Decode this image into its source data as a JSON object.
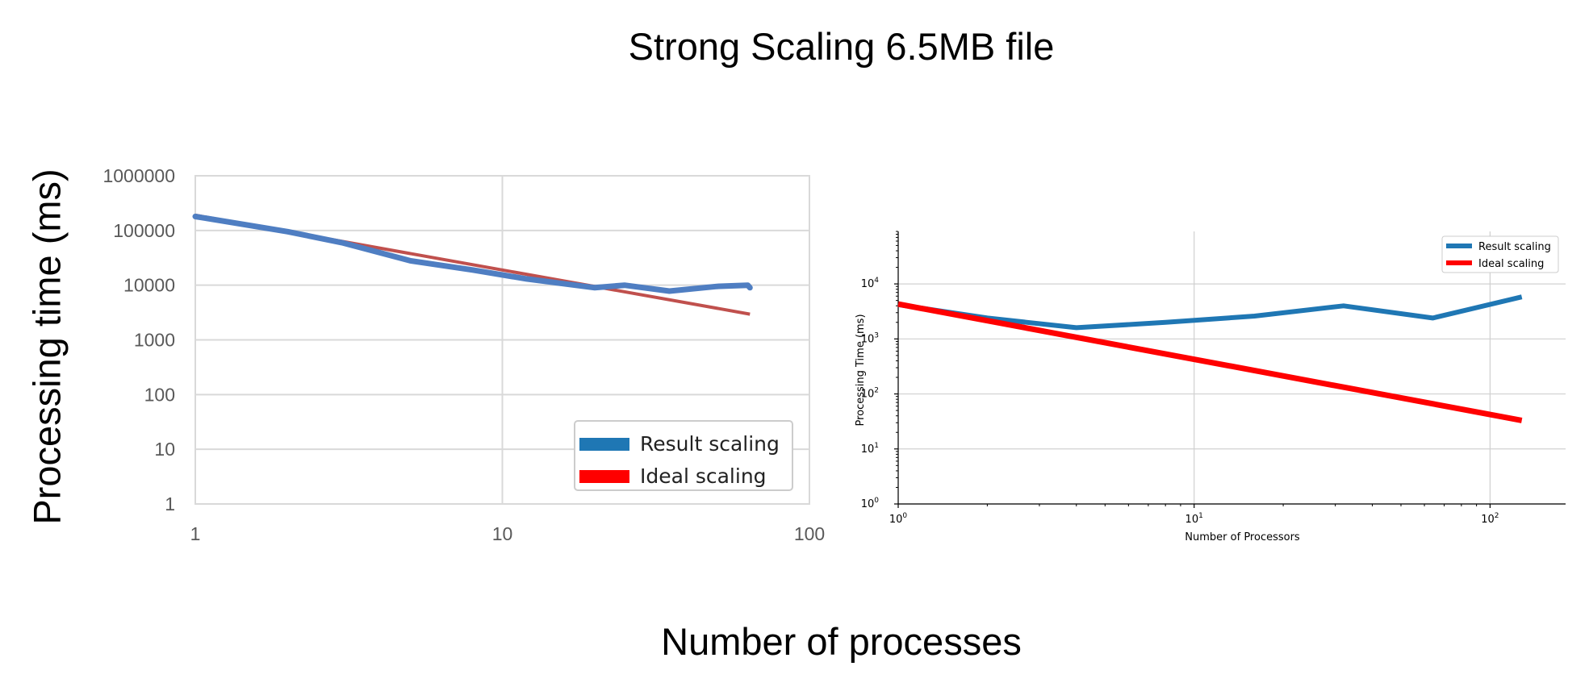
{
  "title": "Strong Scaling 6.5MB file",
  "ylabel": "Processing time (ms)",
  "xlabel": "Number of processes",
  "colors": {
    "result": "#4f7ec2",
    "ideal": "#c0504d",
    "result2": "#1f77b4",
    "ideal2": "#ff0000"
  },
  "chart_data": [
    {
      "type": "line",
      "x_scale": "log",
      "y_scale": "log",
      "xlim": [
        1,
        100
      ],
      "ylim": [
        1,
        1000000
      ],
      "x_ticks": [
        "1",
        "10",
        "100"
      ],
      "y_ticks": [
        "1",
        "10",
        "100",
        "1000",
        "10000",
        "100000",
        "1000000"
      ],
      "grid": true,
      "legend": {
        "position": "lower-right",
        "entries": [
          "Result scaling",
          "Ideal scaling"
        ],
        "swatch_colors": [
          "#1f77b4",
          "#ff0000"
        ]
      },
      "series": [
        {
          "name": "Result scaling",
          "x": [
            1,
            2,
            3,
            5,
            8,
            12,
            20,
            25,
            35,
            50,
            63,
            64
          ],
          "y": [
            180000,
            95000,
            60000,
            28000,
            19000,
            13000,
            9000,
            10000,
            7800,
            9500,
            10000,
            9000
          ]
        },
        {
          "name": "Ideal scaling",
          "x": [
            1,
            64
          ],
          "y": [
            190000,
            2950
          ]
        }
      ]
    },
    {
      "type": "line",
      "x_scale": "log",
      "y_scale": "log",
      "xlim": [
        1,
        180
      ],
      "ylim": [
        1,
        90000
      ],
      "xlabel": "Number of Processors",
      "ylabel": "Processing Time (ms)",
      "x_ticks": [
        {
          "base": "10",
          "exp": "0"
        },
        {
          "base": "10",
          "exp": "1"
        },
        {
          "base": "10",
          "exp": "2"
        }
      ],
      "y_ticks": [
        {
          "base": "10",
          "exp": "0"
        },
        {
          "base": "10",
          "exp": "1"
        },
        {
          "base": "10",
          "exp": "2"
        },
        {
          "base": "10",
          "exp": "3"
        },
        {
          "base": "10",
          "exp": "4"
        }
      ],
      "grid": true,
      "legend": {
        "position": "upper-right",
        "entries": [
          "Result scaling",
          "Ideal scaling"
        ]
      },
      "series": [
        {
          "name": "Result scaling",
          "x": [
            1,
            2,
            4,
            8,
            16,
            32,
            64,
            128
          ],
          "y": [
            4200,
            2400,
            1600,
            2000,
            2600,
            4000,
            2400,
            5800
          ]
        },
        {
          "name": "Ideal scaling",
          "x": [
            1,
            128
          ],
          "y": [
            4300,
            33
          ]
        }
      ]
    }
  ]
}
